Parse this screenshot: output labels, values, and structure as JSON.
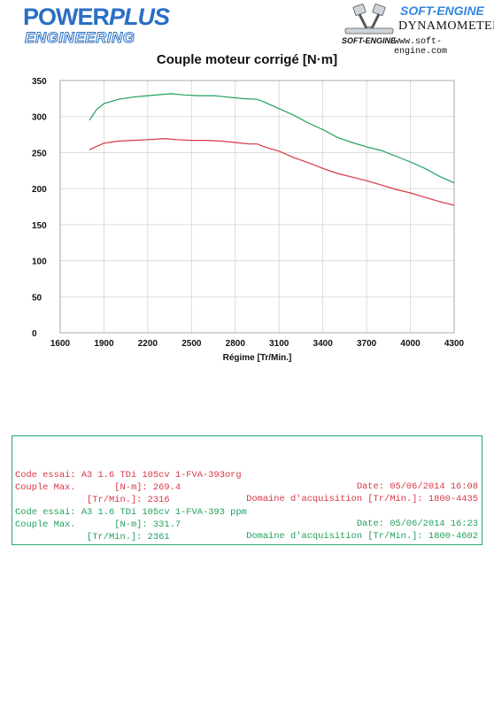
{
  "header": {
    "logo_left_line1_a": "POWER",
    "logo_left_line1_b": "PLUS",
    "logo_left_line2": "ENGINEERING",
    "brand": "SOFT-ENGINE",
    "dynamometers": "DYNAMOMETERS",
    "logo_small": "SOFT-ENGINE",
    "website": "www.soft-engine.com"
  },
  "chart_data": {
    "type": "line",
    "title": "Couple moteur corrigé [N·m]",
    "xlabel": "Régime [Tr/Min.]",
    "ylabel": "",
    "xlim": [
      1600,
      4300
    ],
    "ylim": [
      0,
      350
    ],
    "x_ticks": [
      "1600",
      "1900",
      "2200",
      "2500",
      "2800",
      "3100",
      "3400",
      "3700",
      "4000",
      "4300"
    ],
    "y_ticks": [
      "0",
      "50",
      "100",
      "150",
      "200",
      "250",
      "300",
      "350"
    ],
    "grid": true,
    "series": [
      {
        "color": "#d63744",
        "x": [
          1800,
          1900,
          2000,
          2100,
          2200,
          2316,
          2400,
          2500,
          2600,
          2700,
          2800,
          2900,
          2950,
          3000,
          3100,
          3200,
          3300,
          3400,
          3500,
          3600,
          3700,
          3800,
          3900,
          4000,
          4100,
          4200,
          4300
        ],
        "values": [
          254,
          263,
          266,
          267,
          268,
          269.4,
          268,
          267,
          267,
          266,
          264,
          262,
          262,
          258,
          252,
          243,
          236,
          228,
          221,
          216,
          211,
          205,
          199,
          194,
          188,
          182,
          177
        ]
      },
      {
        "color": "#22a05c",
        "x": [
          1800,
          1850,
          1900,
          2000,
          2100,
          2200,
          2361,
          2450,
          2550,
          2650,
          2750,
          2850,
          2950,
          3000,
          3100,
          3200,
          3300,
          3400,
          3500,
          3600,
          3700,
          3800,
          3900,
          4000,
          4100,
          4200,
          4300
        ],
        "values": [
          295,
          310,
          318,
          324,
          327,
          329,
          331.7,
          330,
          329,
          329,
          327,
          325,
          324,
          320,
          311,
          302,
          291,
          282,
          271,
          264,
          258,
          253,
          245,
          237,
          228,
          217,
          208
        ]
      }
    ]
  },
  "info": {
    "line1_left": "Code essai: A3 1.6 TDi 105cv 1-FVA-393org",
    "line1_right": "Date: 05/06/2014 16:08",
    "line2_left": "Couple Max.       [N·m]: 269.4",
    "line2_right": "Domaine d'acquisition [Tr/Min.]: 1800-4435",
    "line3": "             [Tr/Min.]: 2316",
    "line4_left": "Code essai: A3 1.6 TDi 105cv 1-FVA-393 ppm",
    "line4_right": "Date: 05/06/2014 16:23",
    "line5_left": "Couple Max.       [N·m]: 331.7",
    "line5_right": "Domaine d'acquisition [Tr/Min.]: 1800-4602",
    "line6": "             [Tr/Min.]: 2361"
  }
}
